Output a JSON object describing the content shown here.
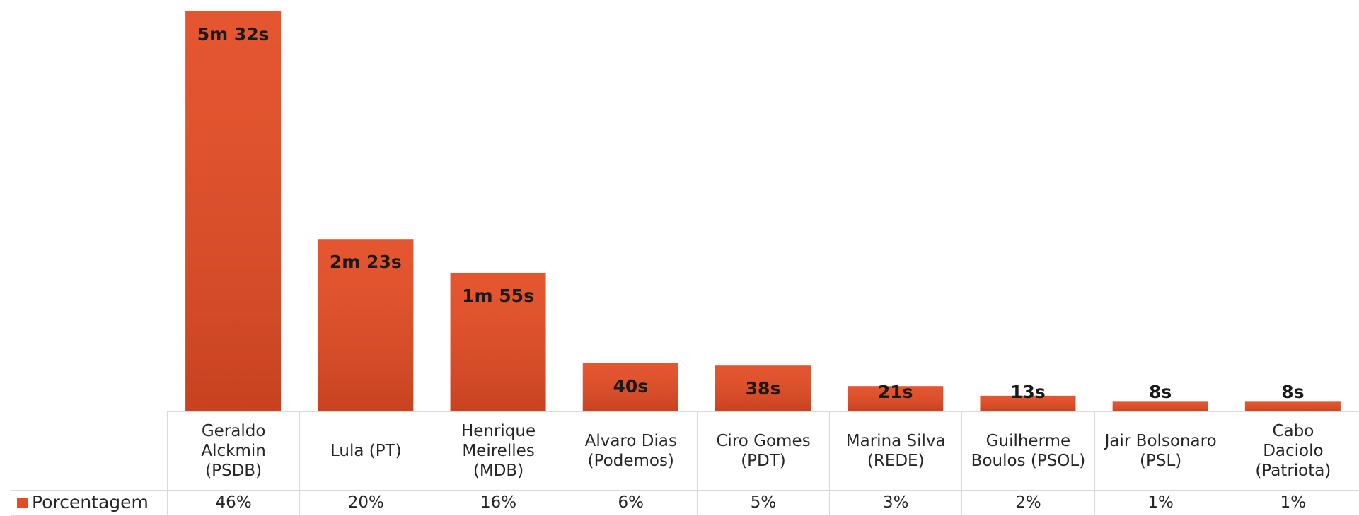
{
  "chart_data": {
    "type": "bar",
    "categories": [
      "Geraldo\nAlckmin\n(PSDB)",
      "Lula (PT)",
      "Henrique\nMeirelles\n(MDB)",
      "Alvaro Dias\n(Podemos)",
      "Ciro Gomes\n(PDT)",
      "Marina Silva\n(REDE)",
      "Guilherme\nBoulos (PSOL)",
      "Jair Bolsonaro\n(PSL)",
      "Cabo\nDaciolo\n(Patriota)"
    ],
    "values": [
      332,
      143,
      115,
      40,
      38,
      21,
      13,
      8,
      8
    ],
    "value_labels": [
      "5m 32s",
      "2m 23s",
      "1m 55s",
      "40s",
      "38s",
      "21s",
      "13s",
      "8s",
      "8s"
    ],
    "color": "#e34b23",
    "table": {
      "row_label": "Porcentagem",
      "cells": [
        "46%",
        "20%",
        "16%",
        "6%",
        "5%",
        "3%",
        "2%",
        "1%",
        "1%"
      ]
    }
  }
}
